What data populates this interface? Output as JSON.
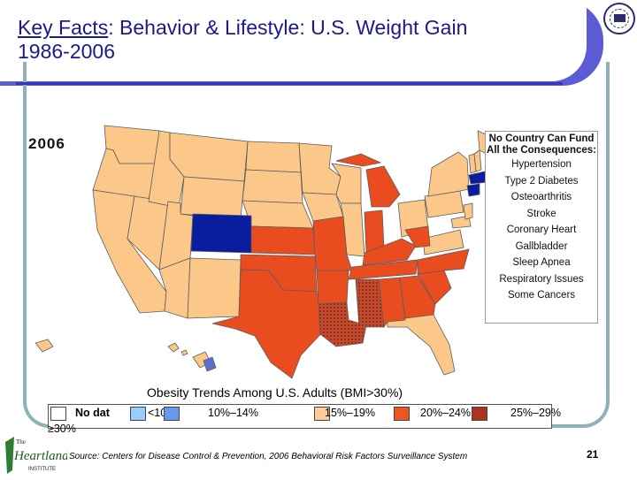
{
  "title": {
    "underlined": "Key Facts",
    "rest": ": Behavior & Lifestyle: U.S. Weight Gain",
    "line2": "1986-2006"
  },
  "map": {
    "year": "2006"
  },
  "sidebar": {
    "heading": "No Country Can Fund All the Consequences:",
    "items": [
      "Hypertension",
      "Type 2 Diabetes",
      "Osteoarthritis",
      "Stroke",
      "Coronary Heart",
      "Gallbladder",
      "Sleep Apnea",
      "Respiratory Issues",
      "Some Cancers"
    ]
  },
  "legend": {
    "title": "Obesity Trends Among U.S. Adults (BMI>30%)",
    "items": [
      {
        "label": "No dat",
        "color": "#ffffff"
      },
      {
        "label": "<10",
        "color": "#99ccff"
      },
      {
        "label": "10%–14%",
        "color": "#6699ee"
      },
      {
        "label": "15%–19%",
        "color": "#ffcc99"
      },
      {
        "label": "20%–24%",
        "color": "#ee5522"
      },
      {
        "label": "25%–29%",
        "color": "#aa3322"
      },
      {
        "label": "≥30%",
        "color": "#000088"
      }
    ]
  },
  "colors": {
    "c15": "#fcc889",
    "c20": "#e94d1f",
    "c25": "#b5442f",
    "c10": "#0a1d9e",
    "border": "#5c5c5c"
  },
  "footer": {
    "source": "Source: Centers for Disease Control & Prevention, 2006 Behavioral Risk Factors Surveillance System",
    "page": "21"
  },
  "logo": {
    "text_the": "The",
    "text_name": "Heartland",
    "text_inst": "INSTITUTE"
  }
}
